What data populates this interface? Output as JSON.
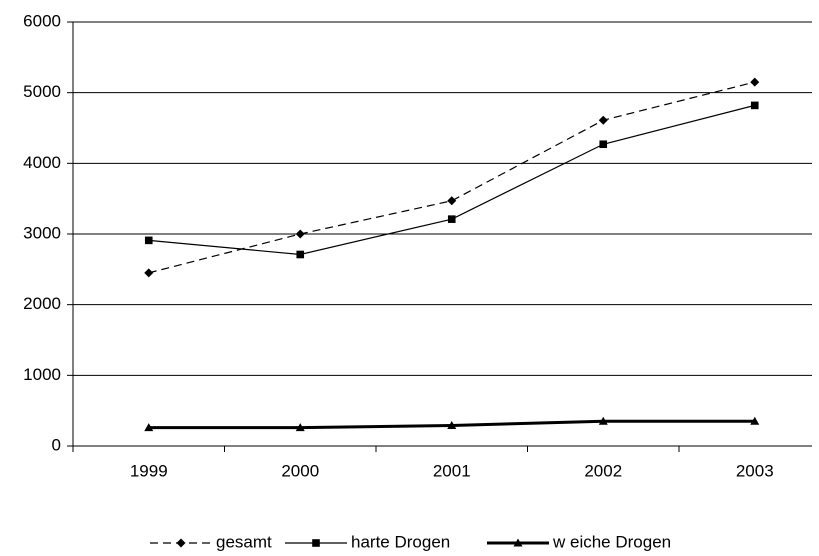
{
  "chart_data": {
    "type": "line",
    "categories": [
      "1999",
      "2000",
      "2001",
      "2002",
      "2003"
    ],
    "series": [
      {
        "name": "gesamt",
        "color": "#000000",
        "dash": true,
        "marker": "diamond",
        "width": 1.2,
        "values": [
          2450,
          3000,
          3470,
          4610,
          5150
        ]
      },
      {
        "name": "harte Drogen",
        "color": "#000000",
        "dash": false,
        "marker": "square",
        "width": 1.2,
        "values": [
          2910,
          2710,
          3210,
          4270,
          4820
        ]
      },
      {
        "name": "w eiche Drogen",
        "color": "#000000",
        "dash": false,
        "marker": "triangle",
        "width": 3,
        "values": [
          260,
          260,
          290,
          350,
          350
        ]
      }
    ],
    "ylim": [
      0,
      6000
    ],
    "yticks": [
      0,
      1000,
      2000,
      3000,
      4000,
      5000,
      6000
    ],
    "grid": true,
    "legend": "bottom"
  }
}
